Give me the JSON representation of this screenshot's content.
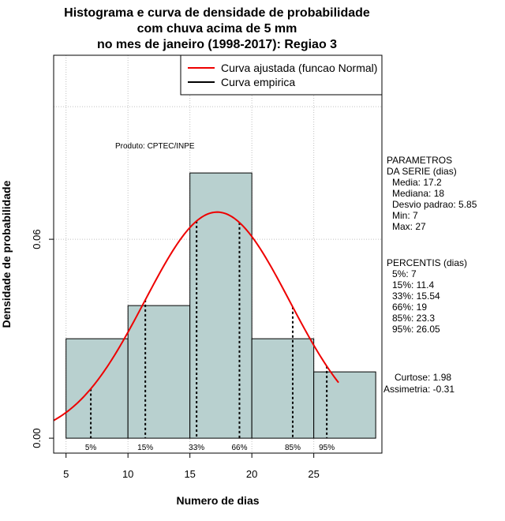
{
  "chart_data": {
    "type": "histogram",
    "title_lines": [
      "Histograma e curva de densidade de probabilidade",
      "com chuva acima de 5 mm",
      "no mes de janeiro (1998-2017): Regiao 3"
    ],
    "xlabel": "Numero de dias",
    "ylabel": "Densidade de probabilidade",
    "xlim": [
      4.0,
      30.5
    ],
    "ylim": [
      -0.0045,
      0.1155
    ],
    "x_ticks": [
      5,
      10,
      15,
      20,
      25
    ],
    "y_ticks": [
      0.0,
      0.06
    ],
    "y_tick_labels": [
      "0.00",
      "0.06"
    ],
    "grid": true,
    "grid_y": [
      0.06,
      0.1
    ],
    "hist_color": "#b8d0cf",
    "curve_color": "#ee0000",
    "bins": [
      {
        "start": 5,
        "end": 10,
        "density": 0.03
      },
      {
        "start": 10,
        "end": 15,
        "density": 0.04
      },
      {
        "start": 15,
        "end": 20,
        "density": 0.08
      },
      {
        "start": 20,
        "end": 25,
        "density": 0.03
      },
      {
        "start": 25,
        "end": 30,
        "density": 0.02
      }
    ],
    "normal_fit": {
      "mean": 17.2,
      "sd": 5.85,
      "x_from": 4.0,
      "x_to": 27
    },
    "percentile_lines": [
      {
        "label": "5%",
        "value": 7
      },
      {
        "label": "15%",
        "value": 11.4
      },
      {
        "label": "33%",
        "value": 15.54
      },
      {
        "label": "66%",
        "value": 19
      },
      {
        "label": "85%",
        "value": 23.3
      },
      {
        "label": "95%",
        "value": 26.05
      }
    ],
    "legend": [
      {
        "label": "Curva ajustada (funcao Normal)",
        "color": "#ee0000"
      },
      {
        "label": "Curva empirica",
        "color": "#000000"
      }
    ],
    "legend_position": "top-right",
    "product_label": "Produto: CPTEC/INPE"
  },
  "stats": {
    "params_title_1": "PARAMETROS",
    "params_title_2": "DA SERIE (dias)",
    "params": [
      "Media: 17.2",
      "Mediana: 18",
      "Desvio padrao: 5.85",
      "Min: 7",
      "Max: 27"
    ],
    "percentis_title": "PERCENTIS (dias)",
    "percentis": [
      "5%: 7",
      "15%: 11.4",
      "33%: 15.54",
      "66%: 19",
      "85%: 23.3",
      "95%: 26.05"
    ],
    "curtose": "Curtose: 1.98",
    "assimetria": "Assimetria: -0.31"
  }
}
